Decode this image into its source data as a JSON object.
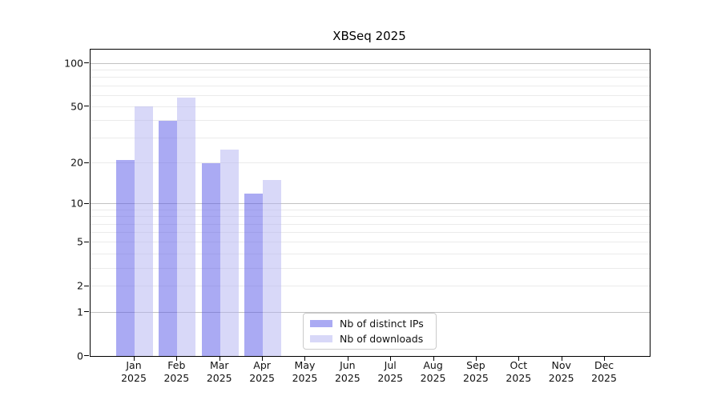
{
  "chart_data": {
    "type": "bar",
    "title": "XBSeq 2025",
    "x_year": "2025",
    "categories": [
      "Jan",
      "Feb",
      "Mar",
      "Apr",
      "May",
      "Jun",
      "Jul",
      "Aug",
      "Sep",
      "Oct",
      "Nov",
      "Dec"
    ],
    "series": [
      {
        "name": "Nb of distinct IPs",
        "color": "rgba(85,85,232,0.5)",
        "values": [
          21,
          40,
          20,
          12,
          null,
          null,
          null,
          null,
          null,
          null,
          null,
          null
        ]
      },
      {
        "name": "Nb of downloads",
        "color": "rgba(177,177,241,0.5)",
        "values": [
          50,
          58,
          25,
          15,
          null,
          null,
          null,
          null,
          null,
          null,
          null,
          null
        ]
      }
    ],
    "y_axis": {
      "scale": "log1p",
      "ylim": [
        0,
        125
      ],
      "tick_values": [
        0,
        1,
        2,
        5,
        10,
        20,
        50,
        100
      ],
      "tick_labels": [
        "0",
        "1",
        "2",
        "5",
        "10",
        "20",
        "50",
        "100"
      ],
      "major_grid_values": [
        1,
        10,
        100
      ],
      "minor_grid_values": [
        2,
        3,
        4,
        5,
        6,
        7,
        8,
        9,
        20,
        30,
        40,
        50,
        60,
        70,
        80,
        90
      ]
    },
    "grid": "on",
    "legend_position": "lower-center"
  },
  "colors": {
    "distinct_ips_fill": "rgba(85,85,232,0.5)",
    "downloads_fill": "rgba(177,177,241,0.5)",
    "major_grid": "#c2c2c2",
    "minor_grid": "#ebebeb",
    "spine": "#000000",
    "legend_border": "#cbcbcb"
  }
}
